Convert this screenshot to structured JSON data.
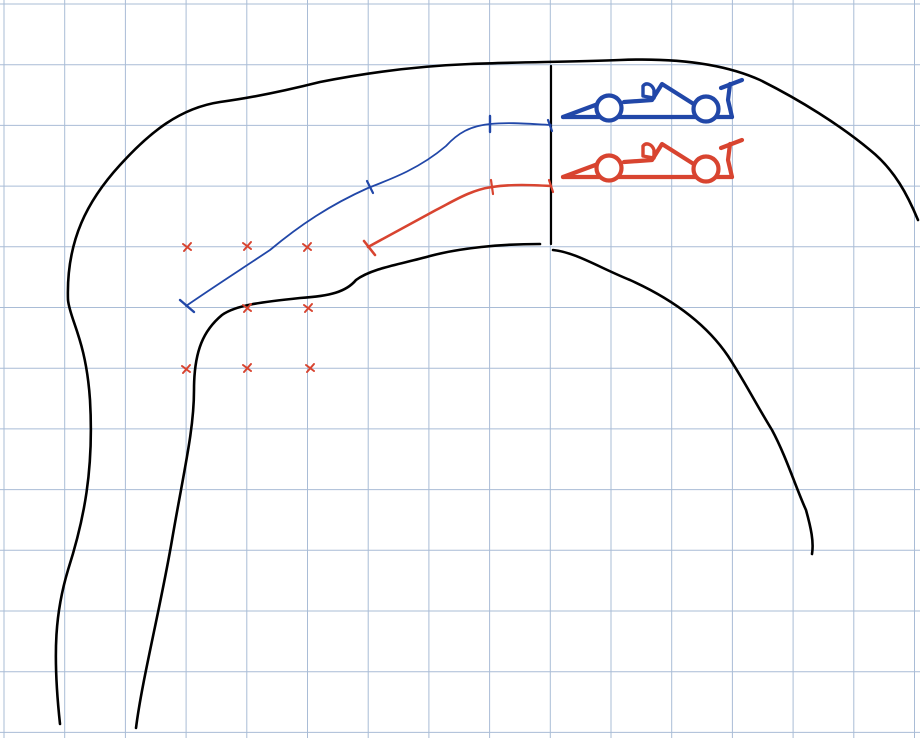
{
  "canvas": {
    "background": "#ffffff"
  },
  "grid": {
    "visible": true,
    "color": "#a9bcd6"
  },
  "colors": {
    "track": "#000000",
    "blue_car": "#2147a8",
    "red_car": "#d84430",
    "crosses": "#d84430"
  },
  "cars": [
    {
      "name": "blue-race-car",
      "color": "#2147a8"
    },
    {
      "name": "red-race-car",
      "color": "#d84430"
    }
  ],
  "racing_lines": [
    {
      "name": "blue-racing-line",
      "color": "#2147a8",
      "marker_count": 4
    },
    {
      "name": "red-racing-line",
      "color": "#d84430",
      "marker_count": 3
    }
  ],
  "grid_crosses": {
    "color": "#d84430",
    "count": 8
  }
}
